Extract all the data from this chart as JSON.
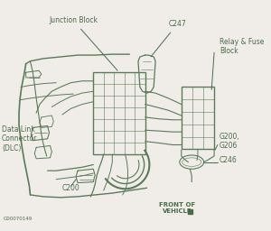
{
  "bg_color": "#f0ede8",
  "line_color": "#5a7a5a",
  "text_color": "#4a6a4a",
  "labels": {
    "junction_block": "Junction Block",
    "c247": "C247",
    "relay_fuse": "Relay & Fuse\nBlock",
    "g200_g206": "G200,\nG206",
    "c246": "C246",
    "data_link": "Data Link\nConnector\n(DLC)",
    "c200": "C200",
    "front_of_vehicle": "FRONT OF\nVEHICLE",
    "watermark": "G00070149"
  },
  "figsize": [
    3.0,
    2.56
  ],
  "dpi": 100
}
